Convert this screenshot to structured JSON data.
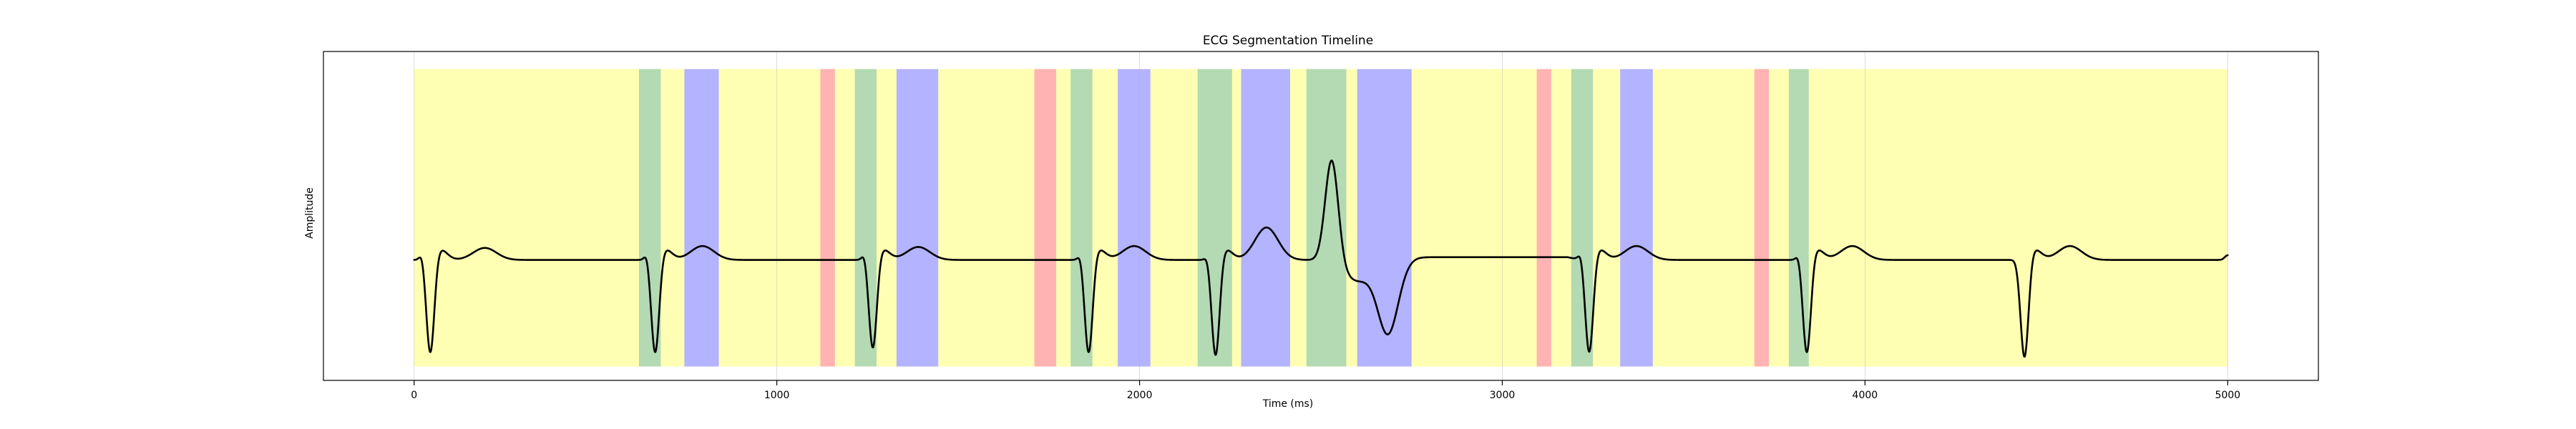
{
  "chart_data": {
    "type": "line",
    "title": "ECG Segmentation Timeline",
    "xlabel": "Time (ms)",
    "ylabel": "Amplitude",
    "xlim": [
      -250,
      5250
    ],
    "ylim": [
      -1.3,
      2.25
    ],
    "xticks": [
      0,
      1000,
      2000,
      3000,
      4000,
      5000
    ],
    "grid": true,
    "legend": "none",
    "series_color": "#000000",
    "segment_colors": {
      "background": "#ffffb3",
      "red": "#ffb3b3",
      "green": "#b3dab3",
      "blue": "#b3b3ff"
    },
    "segments": [
      {
        "type": "background",
        "start": 0,
        "end": 5000
      },
      {
        "type": "green",
        "start": 620,
        "end": 680
      },
      {
        "type": "blue",
        "start": 745,
        "end": 840
      },
      {
        "type": "red",
        "start": 1120,
        "end": 1160
      },
      {
        "type": "green",
        "start": 1215,
        "end": 1275
      },
      {
        "type": "blue",
        "start": 1330,
        "end": 1445
      },
      {
        "type": "red",
        "start": 1710,
        "end": 1770
      },
      {
        "type": "green",
        "start": 1810,
        "end": 1870
      },
      {
        "type": "blue",
        "start": 1940,
        "end": 2030
      },
      {
        "type": "green",
        "start": 2160,
        "end": 2255
      },
      {
        "type": "blue",
        "start": 2280,
        "end": 2415
      },
      {
        "type": "green",
        "start": 2460,
        "end": 2570
      },
      {
        "type": "blue",
        "start": 2600,
        "end": 2750
      },
      {
        "type": "red",
        "start": 3095,
        "end": 3135
      },
      {
        "type": "green",
        "start": 3190,
        "end": 3250
      },
      {
        "type": "blue",
        "start": 3325,
        "end": 3415
      },
      {
        "type": "red",
        "start": 3695,
        "end": 3735
      },
      {
        "type": "green",
        "start": 3790,
        "end": 3845
      }
    ],
    "ecg": {
      "baseline": 0,
      "beats": [
        {
          "x": 0,
          "r": 0.08,
          "s": -1.05,
          "t": 0.13,
          "t_at": 195
        },
        {
          "x": 620,
          "r": 0.08,
          "s": -1.05,
          "t": 0.15,
          "t_at": 795
        },
        {
          "x": 1220,
          "r": 0.08,
          "s": -1.0,
          "t": 0.14,
          "t_at": 1390
        },
        {
          "x": 1815,
          "r": 0.07,
          "s": -1.05,
          "t": 0.15,
          "t_at": 1985
        },
        {
          "x": 2165,
          "r": 0.05,
          "s": -1.08,
          "t": 0.35,
          "t_at": 2350
        },
        {
          "x": 3195,
          "r": 0.08,
          "s": -1.05,
          "t": 0.15,
          "t_at": 3370
        },
        {
          "x": 3795,
          "r": 0.07,
          "s": -1.05,
          "t": 0.15,
          "t_at": 3965
        },
        {
          "x": 4395,
          "r": 0.01,
          "s": -1.1,
          "t": 0.15,
          "t_at": 4565
        }
      ],
      "broad_complex": {
        "peak_x": 2530,
        "peak": 1.12,
        "trough_x": 2685,
        "trough": -0.78,
        "recovery_x": 2750,
        "recovery": 0.03
      },
      "end_value": 0.05
    }
  }
}
